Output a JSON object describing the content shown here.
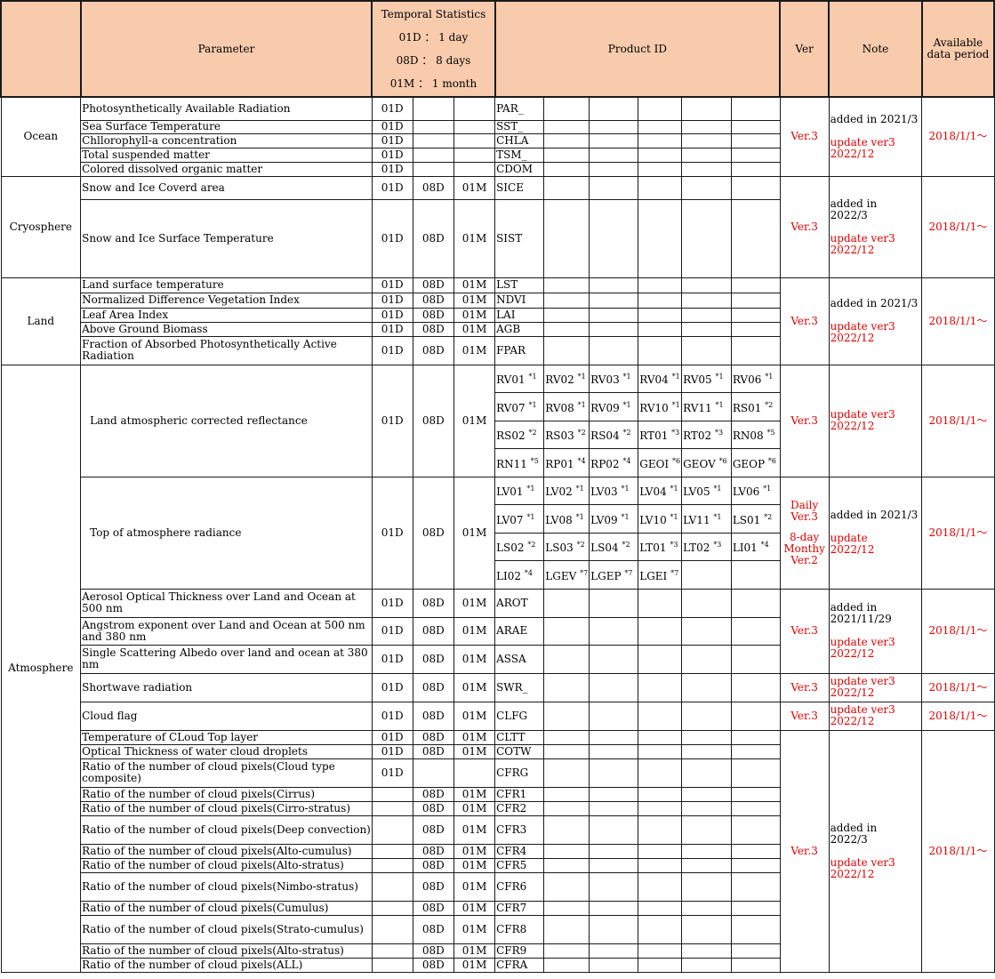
{
  "header": {
    "parameter": "Parameter",
    "temporal_title": "Temporal Statistics",
    "temporal_lines": [
      "01D ： 1 day",
      "08D ： 8 days",
      "01M ： 1 month"
    ],
    "product_id": "Product ID",
    "ver": "Ver",
    "note": "Note",
    "period_l1": "Available",
    "period_l2": "data period"
  },
  "categories": {
    "ocean": "Ocean",
    "cryosphere": "Cryosphere",
    "land": "Land",
    "atmosphere": "Atmosphere"
  },
  "rows": {
    "par": {
      "name": "Photosynthetically Available Radiation",
      "s1": "01D",
      "s2": "",
      "s3": "",
      "id": "PAR_"
    },
    "sst": {
      "name": "Sea Surface Temperature",
      "s1": "01D",
      "s2": "",
      "s3": "",
      "id": "SST_"
    },
    "chla": {
      "name": "Chllorophyll-a concentration",
      "s1": "01D",
      "s2": "",
      "s3": "",
      "id": "CHLA"
    },
    "tsm": {
      "name": "Total suspended matter",
      "s1": "01D",
      "s2": "",
      "s3": "",
      "id": "TSM_"
    },
    "cdom": {
      "name": "Colored dissolved organic matter",
      "s1": "01D",
      "s2": "",
      "s3": "",
      "id": "CDOM"
    },
    "sice": {
      "name": "Snow and Ice Coverd area",
      "s1": "01D",
      "s2": "08D",
      "s3": "01M",
      "id": "SICE"
    },
    "sist": {
      "name": "Snow and Ice Surface Temperature",
      "s1": "01D",
      "s2": "08D",
      "s3": "01M",
      "id": "SIST"
    },
    "lst": {
      "name": "Land surface temperature",
      "s1": "01D",
      "s2": "08D",
      "s3": "01M",
      "id": "LST"
    },
    "ndvi": {
      "name": "Normalized Difference Vegetation Index",
      "s1": "01D",
      "s2": "08D",
      "s3": "01M",
      "id": "NDVI"
    },
    "lai": {
      "name": "Leaf Area Index",
      "s1": "01D",
      "s2": "08D",
      "s3": "01M",
      "id": "LAI"
    },
    "agb": {
      "name": "Above Ground Biomass",
      "s1": "01D",
      "s2": "08D",
      "s3": "01M",
      "id": "AGB"
    },
    "fpar": {
      "name": "Fraction of Absorbed Photosynthetically Active Radiation",
      "s1": "01D",
      "s2": "08D",
      "s3": "01M",
      "id": "FPAR"
    },
    "rv": {
      "name": "Land atmospheric corrected reflectance",
      "s1": "01D",
      "s2": "08D",
      "s3": "01M"
    },
    "lv": {
      "name": "Top of atmosphere radiance",
      "s1": "01D",
      "s2": "08D",
      "s3": "01M"
    },
    "arot": {
      "name": "Aerosol Optical Thickness over Land and Ocean at 500 nm",
      "s1": "01D",
      "s2": "08D",
      "s3": "01M",
      "id": "AROT"
    },
    "arae": {
      "name": "Angstrom exponent over Land and Ocean at 500 nm and 380 nm",
      "s1": "01D",
      "s2": "08D",
      "s3": "01M",
      "id": "ARAE"
    },
    "assa": {
      "name": "Single Scattering Albedo over land and ocean at 380 nm",
      "s1": "01D",
      "s2": "08D",
      "s3": "01M",
      "id": "ASSA"
    },
    "swr": {
      "name": "Shortwave radiation",
      "s1": "01D",
      "s2": "08D",
      "s3": "01M",
      "id": "SWR_"
    },
    "clfg": {
      "name": "Cloud flag",
      "s1": "01D",
      "s2": "08D",
      "s3": "01M",
      "id": "CLFG"
    },
    "cltt": {
      "name": "Temperature of CLoud Top layer",
      "s1": "01D",
      "s2": "08D",
      "s3": "01M",
      "id": "CLTT"
    },
    "cotw": {
      "name": "Optical Thickness of water cloud droplets",
      "s1": "01D",
      "s2": "08D",
      "s3": "01M",
      "id": "COTW"
    },
    "cfrg": {
      "name": "Ratio of the number of cloud pixels(Cloud type composite)",
      "s1": "01D",
      "s2": "",
      "s3": "",
      "id": "CFRG"
    },
    "cfr1": {
      "name": "Ratio of the number of cloud pixels(Cirrus)",
      "s1": "",
      "s2": "08D",
      "s3": "01M",
      "id": "CFR1"
    },
    "cfr2": {
      "name": "Ratio of the number of cloud pixels(Cirro-stratus)",
      "s1": "",
      "s2": "08D",
      "s3": "01M",
      "id": "CFR2"
    },
    "cfr3": {
      "name": "Ratio of the number of cloud pixels(Deep convection)",
      "s1": "",
      "s2": "08D",
      "s3": "01M",
      "id": "CFR3"
    },
    "cfr4": {
      "name": "Ratio of the number of cloud pixels(Alto-cumulus)",
      "s1": "",
      "s2": "08D",
      "s3": "01M",
      "id": "CFR4"
    },
    "cfr5": {
      "name": "Ratio of the number of cloud pixels(Alto-stratus)",
      "s1": "",
      "s2": "08D",
      "s3": "01M",
      "id": "CFR5"
    },
    "cfr6": {
      "name": "Ratio of the number of cloud pixels(Nimbo-stratus)",
      "s1": "",
      "s2": "08D",
      "s3": "01M",
      "id": "CFR6"
    },
    "cfr7": {
      "name": "Ratio of the number of cloud pixels(Cumulus)",
      "s1": "",
      "s2": "08D",
      "s3": "01M",
      "id": "CFR7"
    },
    "cfr8": {
      "name": "Ratio of the number of cloud pixels(Strato-cumulus)",
      "s1": "",
      "s2": "08D",
      "s3": "01M",
      "id": "CFR8"
    },
    "cfr9": {
      "name": "Ratio of the number of cloud pixels(Alto-stratus)",
      "s1": "",
      "s2": "08D",
      "s3": "01M",
      "id": "CFR9"
    },
    "cfra": {
      "name": "Ratio of the number of cloud pixels(ALL)",
      "s1": "",
      "s2": "08D",
      "s3": "01M",
      "id": "CFRA"
    }
  },
  "rv_grid": [
    [
      {
        "id": "RV01",
        "fn": "*1"
      },
      {
        "id": "RV02",
        "fn": "*1"
      },
      {
        "id": "RV03",
        "fn": "*1"
      },
      {
        "id": "RV04",
        "fn": "*1"
      },
      {
        "id": "RV05",
        "fn": "*1"
      },
      {
        "id": "RV06",
        "fn": "*1"
      }
    ],
    [
      {
        "id": "RV07",
        "fn": "*1"
      },
      {
        "id": "RV08",
        "fn": "*1"
      },
      {
        "id": "RV09",
        "fn": "*1"
      },
      {
        "id": "RV10",
        "fn": "*1"
      },
      {
        "id": "RV11",
        "fn": "*1"
      },
      {
        "id": "RS01",
        "fn": "*2"
      }
    ],
    [
      {
        "id": "RS02",
        "fn": "*2"
      },
      {
        "id": "RS03",
        "fn": "*2"
      },
      {
        "id": "RS04",
        "fn": "*2"
      },
      {
        "id": "RT01",
        "fn": "*3"
      },
      {
        "id": "RT02",
        "fn": "*3"
      },
      {
        "id": "RN08",
        "fn": "*5"
      }
    ],
    [
      {
        "id": "RN11",
        "fn": "*5"
      },
      {
        "id": "RP01",
        "fn": "*4"
      },
      {
        "id": "RP02",
        "fn": "*4"
      },
      {
        "id": "GEOI",
        "fn": "*6"
      },
      {
        "id": "GEOV",
        "fn": "*6"
      },
      {
        "id": "GEOP",
        "fn": "*6"
      }
    ]
  ],
  "lv_grid": [
    [
      {
        "id": "LV01",
        "fn": "*1"
      },
      {
        "id": "LV02",
        "fn": "*1"
      },
      {
        "id": "LV03",
        "fn": "*1"
      },
      {
        "id": "LV04",
        "fn": "*1"
      },
      {
        "id": "LV05",
        "fn": "*1"
      },
      {
        "id": "LV06",
        "fn": "*1"
      }
    ],
    [
      {
        "id": "LV07",
        "fn": "*1"
      },
      {
        "id": "LV08",
        "fn": "*1"
      },
      {
        "id": "LV09",
        "fn": "*1"
      },
      {
        "id": "LV10",
        "fn": "*1"
      },
      {
        "id": "LV11",
        "fn": "*1"
      },
      {
        "id": "LS01",
        "fn": "*2"
      }
    ],
    [
      {
        "id": "LS02",
        "fn": "*2"
      },
      {
        "id": "LS03",
        "fn": "*2"
      },
      {
        "id": "LS04",
        "fn": "*2"
      },
      {
        "id": "LT01",
        "fn": "*3"
      },
      {
        "id": "LT02",
        "fn": "*3"
      },
      {
        "id": "LI01",
        "fn": "*4"
      }
    ],
    [
      {
        "id": "LI02",
        "fn": "*4"
      },
      {
        "id": "LGEV",
        "fn": "*7"
      },
      {
        "id": "LGEP",
        "fn": "*7"
      },
      {
        "id": "LGEI",
        "fn": "*7"
      },
      {
        "id": "",
        "fn": ""
      },
      {
        "id": "",
        "fn": ""
      }
    ]
  ],
  "ver": {
    "v3": "Ver.3",
    "lv_daily": "Daily",
    "lv_daily_ver": "Ver.3",
    "lv_8day": "8-day",
    "lv_monthly": "Monthy",
    "lv_monthly_ver": "Ver.2"
  },
  "notes": {
    "ocean_added": "added in 2021/3",
    "update": "update ver3",
    "update_date": "2022/12",
    "cryo_added_l1": "added in",
    "cryo_added_l2": "2022/3",
    "land_added": "added in 2021/3",
    "lv_added": "added in 2021/3",
    "lv_update": "update",
    "aer_added_l1": "added in",
    "aer_added_l2": "2021/11/29",
    "cloud_added_l1": "added in",
    "cloud_added_l2": "2022/3"
  },
  "period": "2018/1/1～",
  "colors": {
    "header_bg": "#f8cbad",
    "accent_red": "#e00000"
  }
}
